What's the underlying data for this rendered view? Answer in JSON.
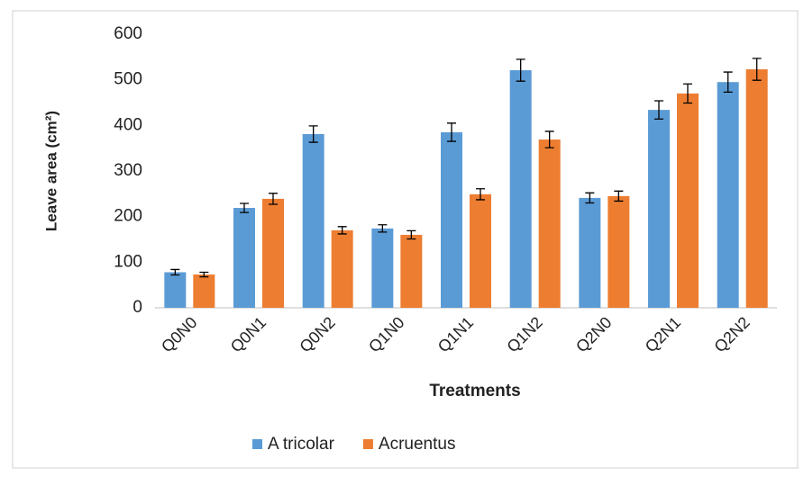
{
  "chart_data": {
    "type": "bar",
    "x_label": "Treatments",
    "y_label": "Leave area (cm²)",
    "categories": [
      "Q0N0",
      "Q0N1",
      "Q0N2",
      "Q1N0",
      "Q1N1",
      "Q1N2",
      "Q2N0",
      "Q2N1",
      "Q2N2"
    ],
    "series": [
      {
        "name": "A tricolar",
        "color": "#5b9bd5",
        "values": [
          78,
          219,
          381,
          174,
          385,
          521,
          241,
          434,
          495
        ],
        "errors": [
          6,
          10,
          18,
          8,
          20,
          24,
          11,
          20,
          22
        ]
      },
      {
        "name": "Acruentus",
        "color": "#ed7d31",
        "values": [
          73,
          239,
          170,
          160,
          249,
          369,
          245,
          470,
          523
        ],
        "errors": [
          5,
          12,
          8,
          9,
          12,
          18,
          11,
          21,
          24
        ]
      }
    ],
    "ylim": [
      0,
      600
    ],
    "yticks": [
      0,
      100,
      200,
      300,
      400,
      500,
      600
    ],
    "legend": "bottom"
  }
}
